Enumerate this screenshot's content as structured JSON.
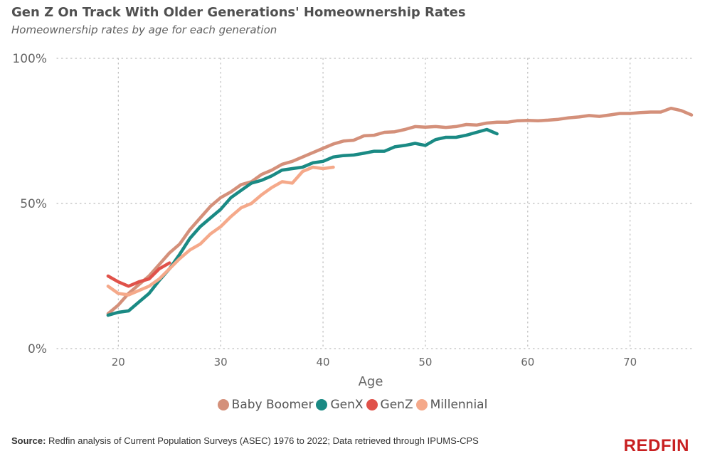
{
  "header": {
    "title": "Gen Z On Track With Older Generations' Homeownership Rates",
    "subtitle": "Homeownership rates by age for each generation"
  },
  "footer": {
    "source_label": "Source:",
    "source_text": " Redfin analysis of Current Population Surveys (ASEC) 1976 to 2022; Data retrieved through IPUMS-CPS",
    "logo_text": "REDFIN"
  },
  "chart_data": {
    "type": "line",
    "xlabel": "Age",
    "ylabel": "",
    "xlim": [
      14,
      76
    ],
    "ylim": [
      0,
      1
    ],
    "xticks": [
      20,
      30,
      40,
      50,
      60,
      70
    ],
    "yticks": [
      0,
      0.5,
      1
    ],
    "ytick_labels": [
      "0%",
      "50%",
      "100%"
    ],
    "grid": true,
    "legend_position": "bottom",
    "series": [
      {
        "name": "Baby Boomer",
        "color": "#d4907a",
        "x": [
          19,
          20,
          21,
          22,
          23,
          24,
          25,
          26,
          27,
          28,
          29,
          30,
          31,
          32,
          33,
          34,
          35,
          36,
          37,
          38,
          39,
          40,
          41,
          42,
          43,
          44,
          45,
          46,
          47,
          48,
          49,
          50,
          51,
          52,
          53,
          54,
          55,
          56,
          57,
          58,
          59,
          60,
          61,
          62,
          63,
          64,
          65,
          66,
          67,
          68,
          69,
          70,
          71,
          72,
          73,
          74,
          75,
          76
        ],
        "values": [
          0.12,
          0.15,
          0.19,
          0.22,
          0.25,
          0.29,
          0.33,
          0.36,
          0.41,
          0.45,
          0.49,
          0.52,
          0.54,
          0.565,
          0.575,
          0.6,
          0.615,
          0.635,
          0.645,
          0.66,
          0.675,
          0.69,
          0.705,
          0.715,
          0.718,
          0.733,
          0.735,
          0.745,
          0.747,
          0.755,
          0.765,
          0.763,
          0.765,
          0.762,
          0.765,
          0.772,
          0.77,
          0.777,
          0.78,
          0.78,
          0.785,
          0.786,
          0.785,
          0.787,
          0.79,
          0.795,
          0.798,
          0.803,
          0.8,
          0.805,
          0.81,
          0.81,
          0.813,
          0.815,
          0.815,
          0.828,
          0.82,
          0.805
        ]
      },
      {
        "name": "GenX",
        "color": "#1a8a84",
        "x": [
          19,
          20,
          21,
          22,
          23,
          24,
          25,
          26,
          27,
          28,
          29,
          30,
          31,
          32,
          33,
          34,
          35,
          36,
          37,
          38,
          39,
          40,
          41,
          42,
          43,
          44,
          45,
          46,
          47,
          48,
          49,
          50,
          51,
          52,
          53,
          54,
          55,
          56,
          57
        ],
        "values": [
          0.115,
          0.125,
          0.13,
          0.16,
          0.19,
          0.235,
          0.275,
          0.325,
          0.38,
          0.42,
          0.45,
          0.48,
          0.52,
          0.545,
          0.57,
          0.58,
          0.595,
          0.615,
          0.62,
          0.625,
          0.64,
          0.645,
          0.66,
          0.665,
          0.667,
          0.673,
          0.68,
          0.68,
          0.695,
          0.7,
          0.707,
          0.7,
          0.72,
          0.728,
          0.728,
          0.735,
          0.745,
          0.755,
          0.74
        ]
      },
      {
        "name": "GenZ",
        "color": "#e0524a",
        "x": [
          19,
          20,
          21,
          22,
          23,
          24,
          25
        ],
        "values": [
          0.25,
          0.23,
          0.215,
          0.23,
          0.24,
          0.275,
          0.295
        ]
      },
      {
        "name": "Millennial",
        "color": "#f5a98a",
        "x": [
          19,
          20,
          21,
          22,
          23,
          24,
          25,
          26,
          27,
          28,
          29,
          30,
          31,
          32,
          33,
          34,
          35,
          36,
          37,
          38,
          39,
          40,
          41
        ],
        "values": [
          0.215,
          0.19,
          0.185,
          0.2,
          0.215,
          0.24,
          0.275,
          0.31,
          0.34,
          0.36,
          0.395,
          0.42,
          0.455,
          0.485,
          0.5,
          0.53,
          0.555,
          0.575,
          0.57,
          0.61,
          0.625,
          0.62,
          0.625
        ]
      }
    ]
  }
}
